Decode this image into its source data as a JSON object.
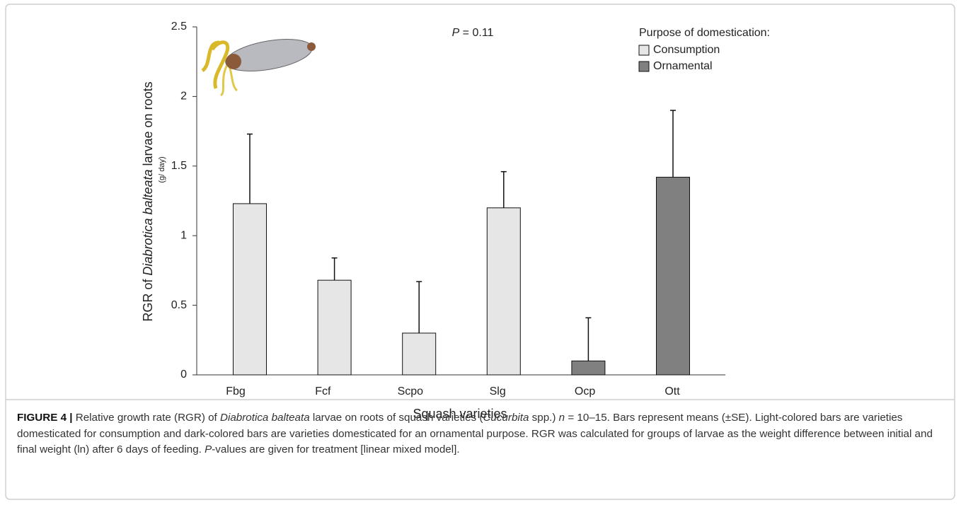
{
  "chart_data": {
    "type": "bar",
    "categories": [
      "Fbg",
      "Fcf",
      "Scpo",
      "Slg",
      "Ocp",
      "Ott"
    ],
    "values": [
      1.23,
      0.68,
      0.3,
      1.2,
      0.1,
      1.42
    ],
    "errors": [
      0.5,
      0.16,
      0.37,
      0.26,
      0.31,
      0.48
    ],
    "colors": [
      "#e6e6e6",
      "#e6e6e6",
      "#e6e6e6",
      "#e6e6e6",
      "#808080",
      "#808080"
    ],
    "ylim": [
      0,
      2.5
    ],
    "yticks": [
      0,
      0.5,
      1,
      1.5,
      2,
      2.5
    ],
    "xlabel": "Squash varieties",
    "ylabel": [
      {
        "text": "RGR of "
      },
      {
        "text": "Diabrotica balteata",
        "style": "italic"
      },
      {
        "text": " larvae on roots"
      }
    ],
    "ylabel_unit": "(g/ day)",
    "annotation": [
      {
        "text": "P",
        "style": "italic"
      },
      {
        "text": " = 0.11"
      }
    ],
    "legend": {
      "title": "Purpose of domestication:",
      "position": "top-right",
      "items": [
        {
          "name": "Consumption",
          "color": "#e6e6e6"
        },
        {
          "name": "Ornamental",
          "color": "#808080"
        }
      ]
    }
  },
  "caption": [
    {
      "text": "FIGURE 4 | ",
      "style": "bold"
    },
    {
      "text": "Relative growth rate (RGR) of "
    },
    {
      "text": "Diabrotica balteata",
      "style": "italic"
    },
    {
      "text": " larvae on roots of squash varieties ("
    },
    {
      "text": "Cucurbita",
      "style": "italic"
    },
    {
      "text": " spp.) "
    },
    {
      "text": "n",
      "style": "italic"
    },
    {
      "text": " = 10–15. Bars represent means (±SE). Light-colored bars are varieties domesticated for consumption and dark-colored bars are varieties domesticated for an ornamental purpose. RGR was calculated for groups of larvae as the weight difference between initial and final weight (ln) after 6 days of feeding. "
    },
    {
      "text": "P",
      "style": "italic"
    },
    {
      "text": "-values are given for treatment [linear mixed model]."
    }
  ]
}
